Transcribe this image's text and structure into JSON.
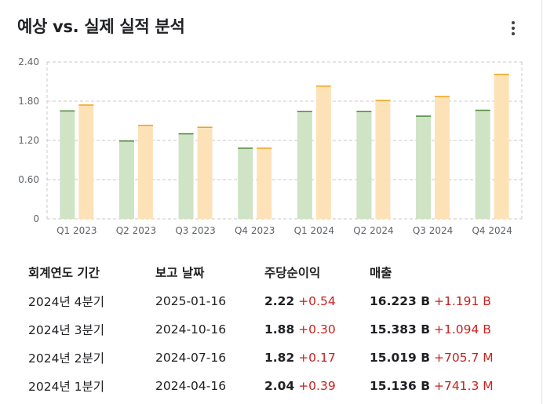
{
  "header": {
    "title": "예상 vs. 실제 실적 분석",
    "menu_icon": "more-vert-icon"
  },
  "colors": {
    "estimate_bar": "#cfe3c5",
    "estimate_top": "#4f8a3c",
    "actual_bar": "#fde2b8",
    "actual_top": "#f0a21a",
    "positive": "#c5221f",
    "grid": "#c8c8c8"
  },
  "chart_data": {
    "type": "bar",
    "categories": [
      "Q1 2023",
      "Q2 2023",
      "Q3 2023",
      "Q4 2023",
      "Q1 2024",
      "Q2 2024",
      "Q3 2024",
      "Q4 2024"
    ],
    "series": [
      {
        "values": [
          1.66,
          1.2,
          1.31,
          1.09,
          1.65,
          1.65,
          1.58,
          1.67
        ]
      },
      {
        "values": [
          1.75,
          1.44,
          1.41,
          1.09,
          2.04,
          1.82,
          1.88,
          2.22
        ]
      }
    ],
    "yticks": [
      "0",
      "0.60",
      "1.20",
      "1.80",
      "2.40"
    ],
    "ylim": [
      0,
      2.4
    ],
    "grid": true
  },
  "table": {
    "headers": [
      "회계연도 기간",
      "보고 날짜",
      "주당순이익",
      "매출"
    ],
    "rows": [
      {
        "period": "2024년 4분기",
        "date": "2025-01-16",
        "eps": "2.22",
        "eps_diff": "+0.54",
        "rev": "16.223 B",
        "rev_diff": "+1.191 B"
      },
      {
        "period": "2024년 3분기",
        "date": "2024-10-16",
        "eps": "1.88",
        "eps_diff": "+0.30",
        "rev": "15.383 B",
        "rev_diff": "+1.094 B"
      },
      {
        "period": "2024년 2분기",
        "date": "2024-07-16",
        "eps": "1.82",
        "eps_diff": "+0.17",
        "rev": "15.019 B",
        "rev_diff": "+705.7 M"
      },
      {
        "period": "2024년 1분기",
        "date": "2024-04-16",
        "eps": "2.04",
        "eps_diff": "+0.39",
        "rev": "15.136 B",
        "rev_diff": "+741.3 M"
      }
    ]
  }
}
